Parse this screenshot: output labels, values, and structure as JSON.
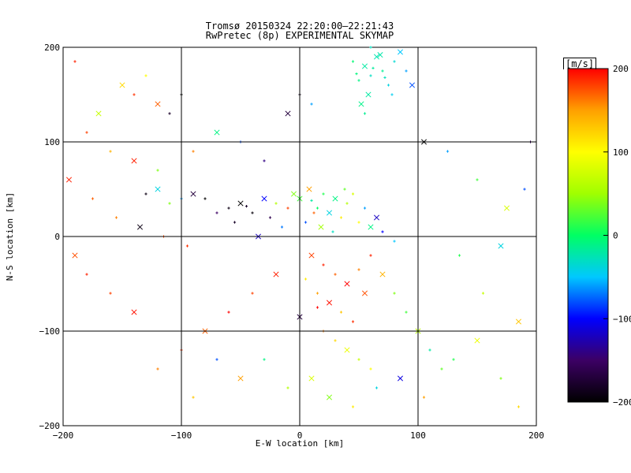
{
  "chart_data": {
    "type": "scatter",
    "title": "Tromsø 20150324 22:20:00–22:21:43",
    "subtitle": "RwPretec (8p) EXPERIMENTAL SKYMAP",
    "xlabel": "E-W location [km]",
    "ylabel": "N-S location [km]",
    "xlim": [
      -200,
      200
    ],
    "ylim": [
      -200,
      200
    ],
    "x_ticks": [
      -200,
      -100,
      0,
      100,
      200
    ],
    "y_ticks": [
      -200,
      -100,
      0,
      100,
      200
    ],
    "x_tick_labels": [
      "−200",
      "−100",
      "0",
      "100",
      "200"
    ],
    "y_tick_labels": [
      "−200",
      "−100",
      "0",
      "100",
      "200"
    ],
    "grid": true,
    "colorbar": {
      "units": "[m/s]",
      "range": [
        -200,
        200
      ],
      "ticks": [
        -200,
        -100,
        0,
        100,
        200
      ],
      "tick_labels": [
        "−200",
        "−100",
        "0",
        "100",
        "200"
      ],
      "colors": [
        "#000000",
        "#3c0064",
        "#0000ff",
        "#00c8ff",
        "#00ff64",
        "#a0ff00",
        "#ffff00",
        "#ffa000",
        "#ff0000"
      ]
    },
    "marker_types": [
      "small cross",
      "x-mark"
    ],
    "series": [
      {
        "cluster": "northeast-cyan",
        "points": [
          [
            55,
            180,
            -20
          ],
          [
            60,
            170,
            -30
          ],
          [
            70,
            175,
            -15
          ],
          [
            65,
            190,
            -25
          ],
          [
            80,
            185,
            -35
          ],
          [
            50,
            165,
            -10
          ],
          [
            58,
            150,
            -20
          ],
          [
            75,
            160,
            -40
          ],
          [
            45,
            185,
            -5
          ],
          [
            85,
            195,
            -50
          ],
          [
            62,
            178,
            -18
          ],
          [
            72,
            168,
            -28
          ],
          [
            52,
            140,
            -12
          ],
          [
            90,
            175,
            -60
          ],
          [
            48,
            172,
            -8
          ],
          [
            68,
            192,
            -22
          ],
          [
            78,
            150,
            -45
          ],
          [
            55,
            130,
            -15
          ],
          [
            95,
            160,
            -80
          ],
          [
            60,
            200,
            -30
          ]
        ]
      },
      {
        "cluster": "upper-band-mixed",
        "points": [
          [
            -60,
            30,
            -190
          ],
          [
            -50,
            35,
            -200
          ],
          [
            -45,
            32,
            -180
          ],
          [
            -40,
            25,
            -195
          ],
          [
            -30,
            40,
            -100
          ],
          [
            -20,
            35,
            60
          ],
          [
            -10,
            30,
            180
          ],
          [
            0,
            40,
            20
          ],
          [
            10,
            38,
            -20
          ],
          [
            20,
            45,
            10
          ],
          [
            30,
            40,
            -10
          ],
          [
            40,
            35,
            60
          ],
          [
            15,
            30,
            0
          ],
          [
            25,
            25,
            -40
          ],
          [
            35,
            20,
            110
          ],
          [
            5,
            15,
            -80
          ],
          [
            -5,
            45,
            40
          ],
          [
            45,
            45,
            80
          ],
          [
            55,
            30,
            -60
          ],
          [
            65,
            20,
            -120
          ],
          [
            -70,
            25,
            -150
          ],
          [
            -80,
            40,
            -200
          ],
          [
            -90,
            45,
            -170
          ],
          [
            -100,
            40,
            -60
          ],
          [
            -110,
            35,
            40
          ],
          [
            -120,
            50,
            -40
          ],
          [
            -130,
            45,
            -190
          ],
          [
            -25,
            20,
            -160
          ],
          [
            18,
            10,
            50
          ],
          [
            28,
            5,
            -30
          ],
          [
            38,
            50,
            30
          ],
          [
            8,
            50,
            150
          ],
          [
            -15,
            10,
            -70
          ],
          [
            50,
            15,
            100
          ],
          [
            60,
            10,
            -10
          ],
          [
            70,
            5,
            -100
          ],
          [
            80,
            -5,
            -50
          ],
          [
            -35,
            0,
            -120
          ],
          [
            -55,
            15,
            -180
          ],
          [
            12,
            25,
            170
          ]
        ]
      },
      {
        "cluster": "south-red",
        "points": [
          [
            10,
            -20,
            180
          ],
          [
            20,
            -30,
            190
          ],
          [
            30,
            -40,
            170
          ],
          [
            40,
            -50,
            200
          ],
          [
            50,
            -35,
            160
          ],
          [
            15,
            -60,
            150
          ],
          [
            25,
            -70,
            195
          ],
          [
            35,
            -80,
            130
          ],
          [
            45,
            -90,
            185
          ],
          [
            55,
            -60,
            175
          ],
          [
            5,
            -45,
            110
          ],
          [
            60,
            -20,
            190
          ],
          [
            70,
            -40,
            140
          ],
          [
            20,
            -100,
            160
          ],
          [
            30,
            -110,
            120
          ],
          [
            40,
            -120,
            90
          ],
          [
            50,
            -130,
            70
          ],
          [
            60,
            -140,
            100
          ],
          [
            10,
            -150,
            80
          ],
          [
            80,
            -60,
            40
          ],
          [
            90,
            -80,
            20
          ],
          [
            100,
            -100,
            60
          ],
          [
            110,
            -120,
            -20
          ],
          [
            120,
            -140,
            30
          ],
          [
            -20,
            -40,
            190
          ],
          [
            -40,
            -60,
            180
          ],
          [
            -60,
            -80,
            200
          ],
          [
            -80,
            -100,
            170
          ],
          [
            -100,
            -120,
            185
          ],
          [
            -120,
            -140,
            160
          ],
          [
            -140,
            -80,
            195
          ],
          [
            -160,
            -60,
            180
          ],
          [
            -180,
            -40,
            190
          ],
          [
            -190,
            -20,
            175
          ],
          [
            -30,
            -130,
            -10
          ],
          [
            -10,
            -160,
            60
          ],
          [
            25,
            -170,
            40
          ],
          [
            45,
            -180,
            110
          ],
          [
            65,
            -160,
            -40
          ],
          [
            85,
            -150,
            -110
          ],
          [
            105,
            -170,
            150
          ],
          [
            130,
            -130,
            10
          ],
          [
            150,
            -110,
            90
          ],
          [
            170,
            -150,
            40
          ],
          [
            185,
            -180,
            120
          ],
          [
            -50,
            -150,
            150
          ],
          [
            -70,
            -130,
            -80
          ],
          [
            -90,
            -170,
            130
          ],
          [
            0,
            -85,
            -170
          ],
          [
            15,
            -75,
            200
          ]
        ]
      },
      {
        "cluster": "northwest-scatter",
        "points": [
          [
            -190,
            185,
            190
          ],
          [
            -150,
            160,
            120
          ],
          [
            -140,
            150,
            185
          ],
          [
            -130,
            170,
            100
          ],
          [
            -120,
            140,
            170
          ],
          [
            -110,
            130,
            -180
          ],
          [
            -100,
            150,
            -200
          ],
          [
            -170,
            130,
            70
          ],
          [
            -180,
            110,
            180
          ],
          [
            -160,
            90,
            140
          ],
          [
            -140,
            80,
            190
          ],
          [
            -120,
            70,
            40
          ],
          [
            -90,
            90,
            160
          ],
          [
            -70,
            110,
            -10
          ],
          [
            -50,
            100,
            -80
          ],
          [
            -30,
            80,
            -140
          ],
          [
            -10,
            130,
            -170
          ],
          [
            0,
            150,
            -190
          ],
          [
            10,
            140,
            -60
          ],
          [
            -195,
            60,
            190
          ],
          [
            -175,
            40,
            170
          ],
          [
            -155,
            20,
            160
          ],
          [
            -135,
            10,
            -190
          ],
          [
            -115,
            0,
            175
          ],
          [
            -95,
            -10,
            185
          ],
          [
            105,
            100,
            -200
          ],
          [
            125,
            90,
            -60
          ],
          [
            150,
            60,
            20
          ],
          [
            175,
            30,
            80
          ],
          [
            195,
            100,
            -160
          ],
          [
            190,
            50,
            -80
          ],
          [
            170,
            -10,
            -40
          ],
          [
            135,
            -20,
            10
          ],
          [
            155,
            -60,
            70
          ],
          [
            185,
            -90,
            130
          ]
        ]
      }
    ]
  }
}
